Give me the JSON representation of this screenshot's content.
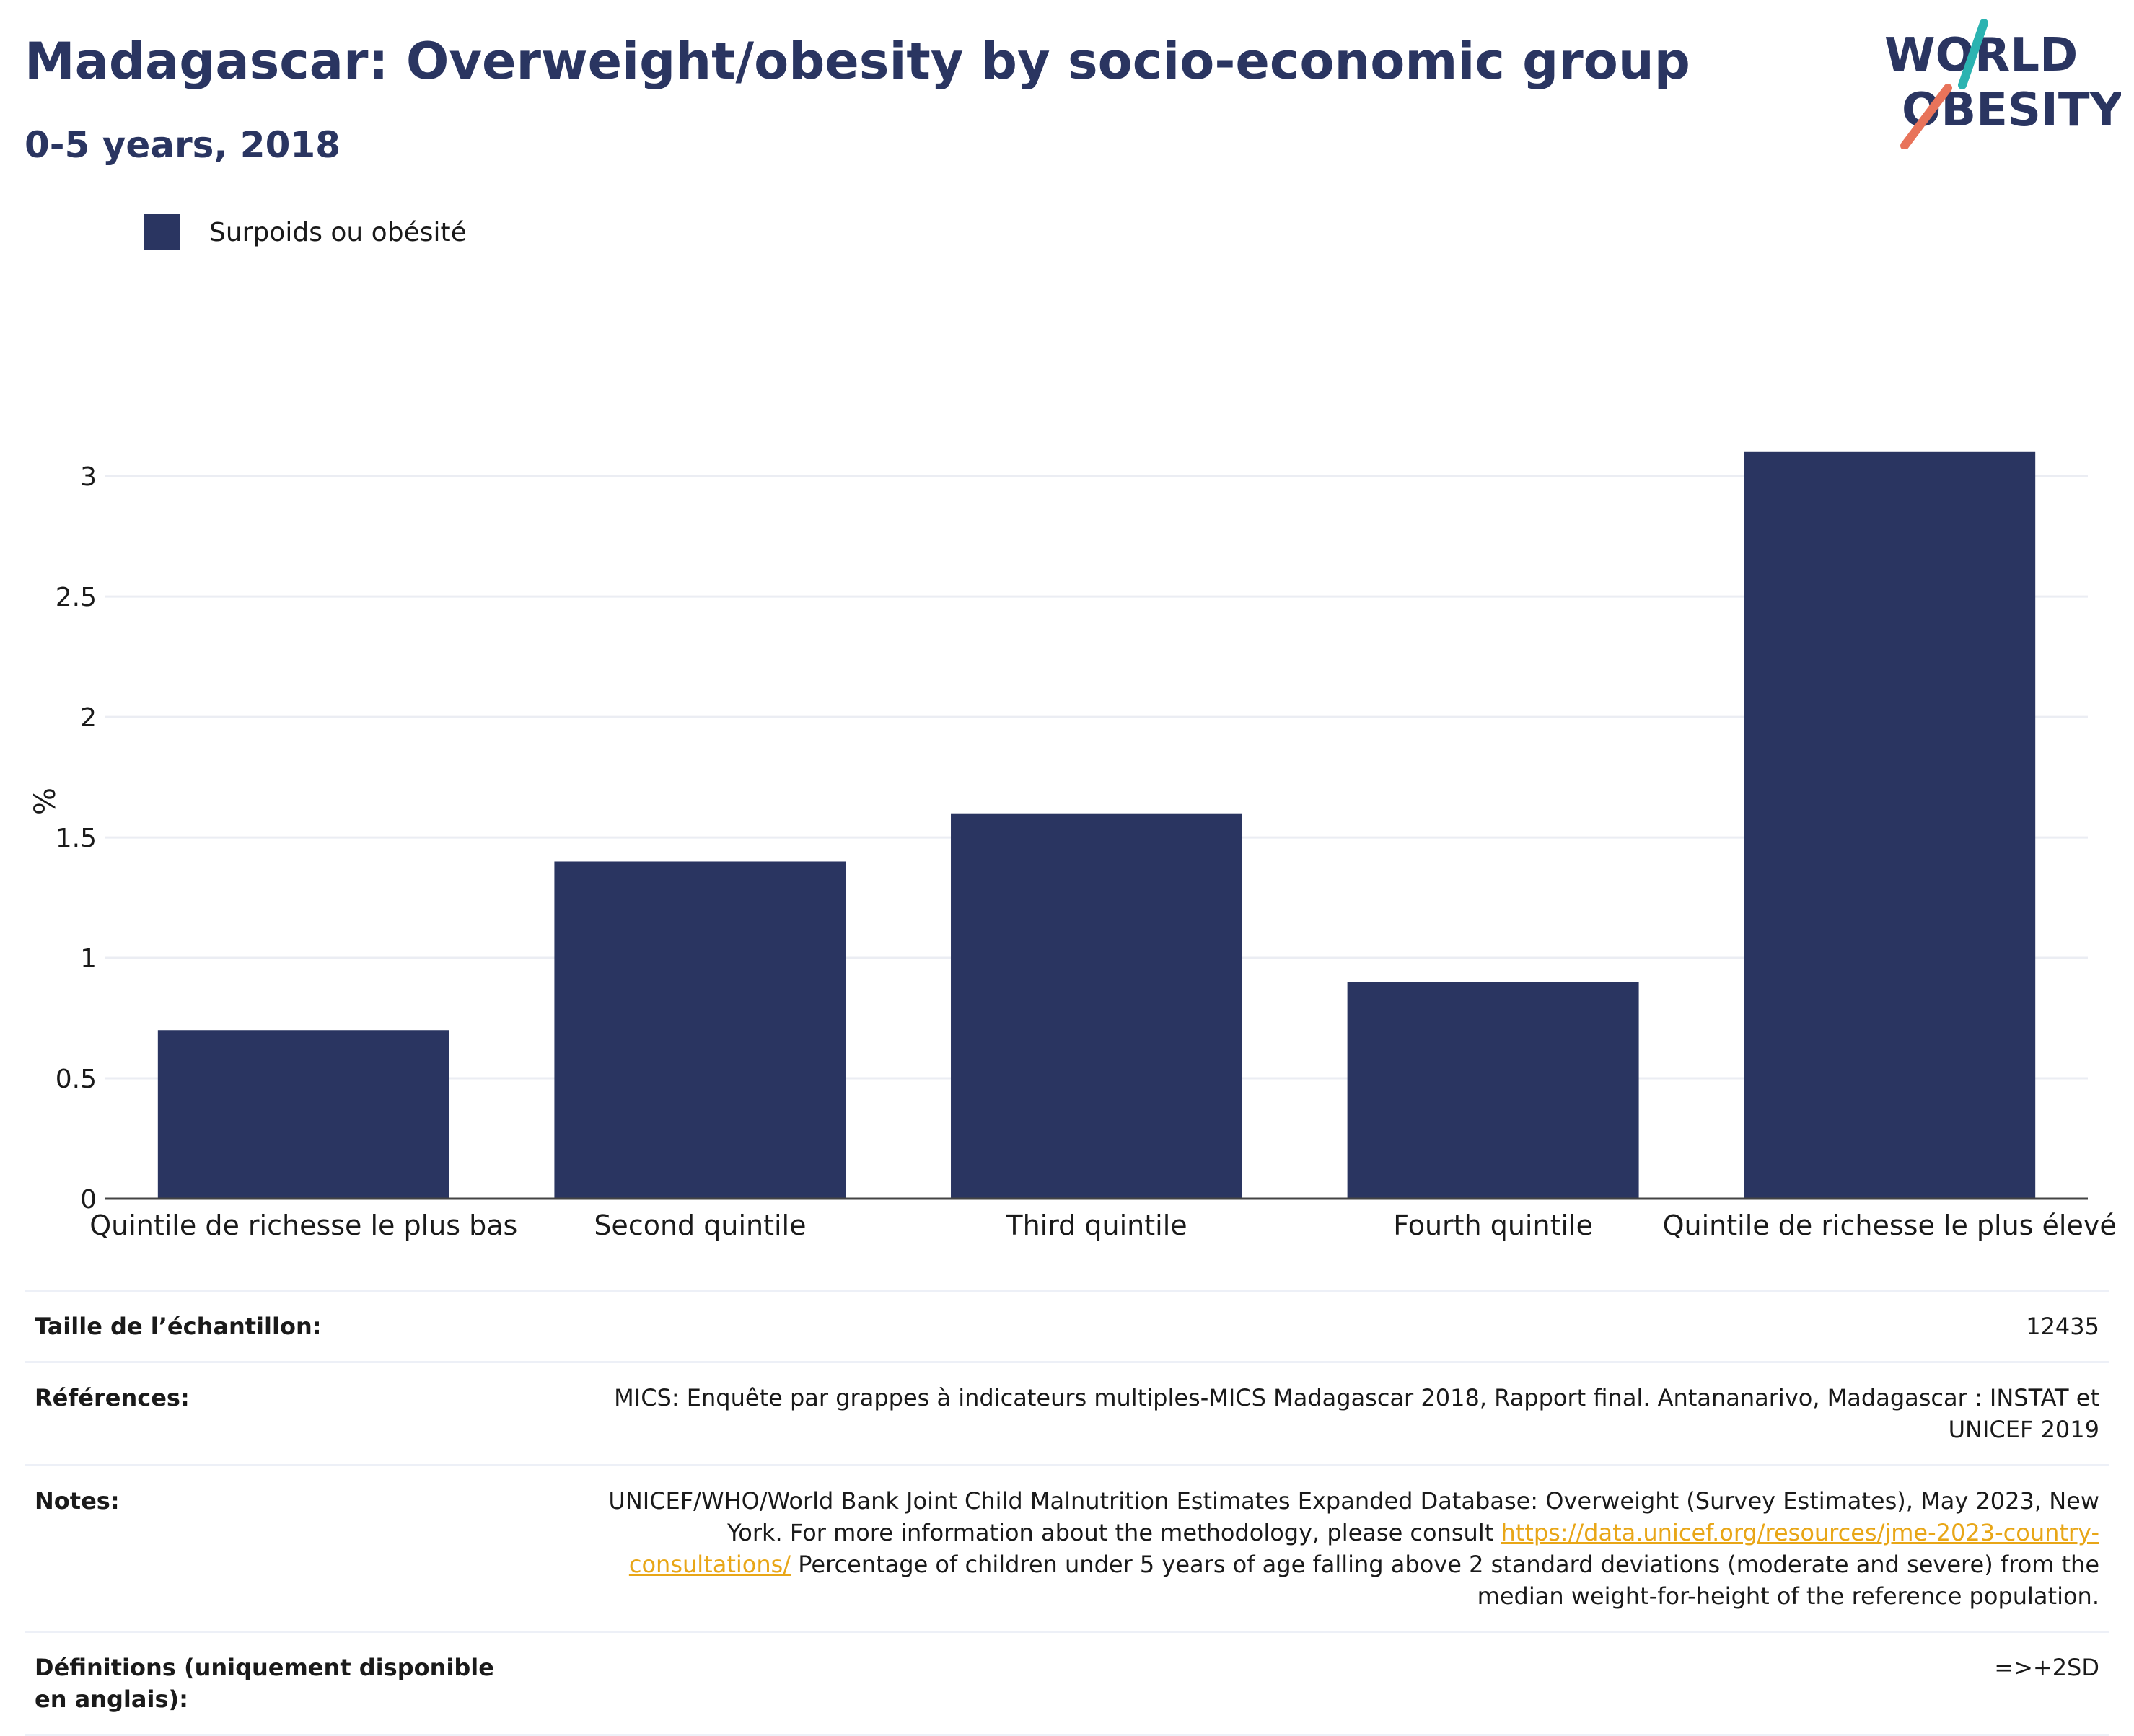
{
  "header": {
    "title": "Madagascar: Overweight/obesity by socio-economic group",
    "subtitle": "0-5 years, 2018"
  },
  "logo": {
    "line1": "WORLD",
    "line2": "OBESITY",
    "colors": {
      "text": "#2a3561",
      "teal": "#2bb3b1",
      "coral": "#e8735a"
    }
  },
  "chart_data": {
    "type": "bar",
    "categories": [
      "Quintile de richesse le plus bas",
      "Second quintile",
      "Third quintile",
      "Fourth quintile",
      "Quintile de richesse le plus élevé"
    ],
    "series": [
      {
        "name": "Surpoids ou obésité",
        "values": [
          0.7,
          1.4,
          1.6,
          0.9,
          3.1
        ],
        "color": "#2a3561"
      }
    ],
    "title": "Madagascar: Overweight/obesity by socio-economic group",
    "subtitle": "0-5 years, 2018",
    "xlabel": "",
    "ylabel": "%",
    "ylim": [
      0,
      3.3
    ],
    "yticks": [
      0,
      0.5,
      1,
      1.5,
      2,
      2.5,
      3
    ],
    "ytick_labels": [
      "0",
      "0.5",
      "1",
      "1.5",
      "2",
      "2.5",
      "3"
    ],
    "grid": true,
    "legend_position": "top-left"
  },
  "meta": {
    "sample_label": "Taille de l’échantillon:",
    "sample_value": "12435",
    "references_label": "Références:",
    "references_value": "MICS: Enquête par grappes à indicateurs multiples-MICS Madagascar 2018, Rapport final. Antananarivo, Madagascar : INSTAT et UNICEF 2019",
    "notes_label": "Notes:",
    "notes_text1": "UNICEF/WHO/World Bank Joint Child Malnutrition Estimates Expanded Database: Overweight (Survey Estimates), May 2023, New York. For more information about the methodology, please consult ",
    "notes_link": "https://data.unicef.org/resources/jme-2023-country-consultations/",
    "notes_text2": " Percentage of children under 5 years of age falling above 2 standard deviations (moderate and severe) from the median weight-for-height of the reference population.",
    "definitions_label": "Définitions (uniquement disponible en anglais):",
    "definitions_value": "=>+2SD"
  }
}
